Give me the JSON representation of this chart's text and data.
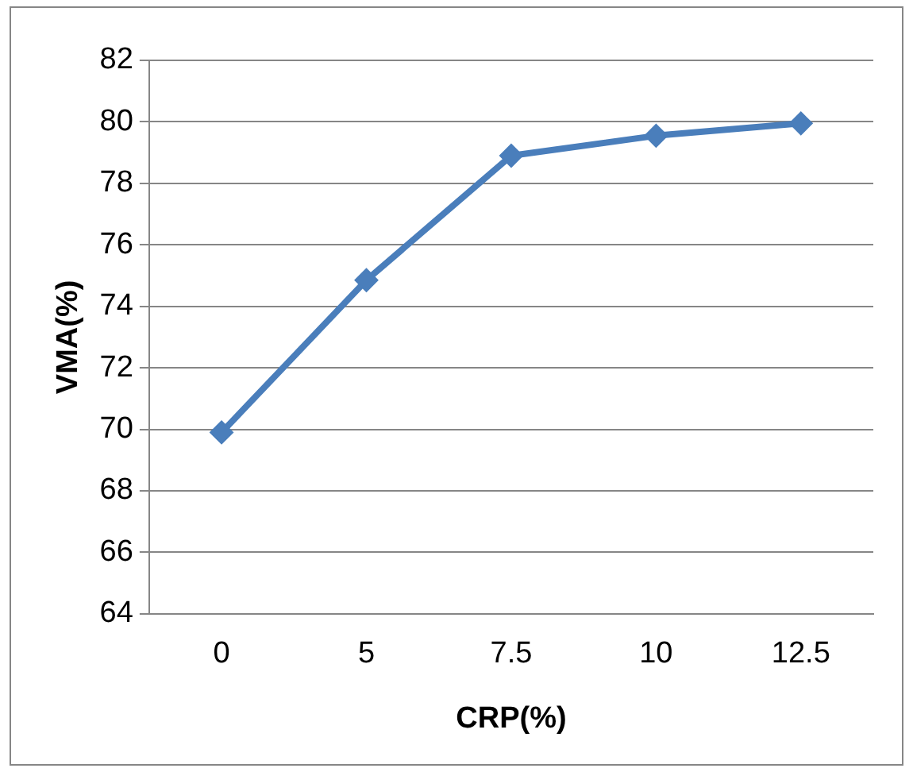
{
  "chart_data": {
    "type": "line",
    "xlabel": "CRP(%)",
    "ylabel": "VMA(%)",
    "categories": [
      "0",
      "5",
      "7.5",
      "10",
      "12.5"
    ],
    "series": [
      {
        "color": "#4a7ebb",
        "values": [
          69.9,
          74.85,
          78.9,
          79.55,
          79.95
        ]
      }
    ],
    "ylim": [
      64,
      82
    ],
    "yticks": [
      64,
      66,
      68,
      70,
      72,
      74,
      76,
      78,
      80,
      82
    ],
    "grid": "y",
    "legend": false,
    "marker": "diamond",
    "line_style": "solid"
  }
}
